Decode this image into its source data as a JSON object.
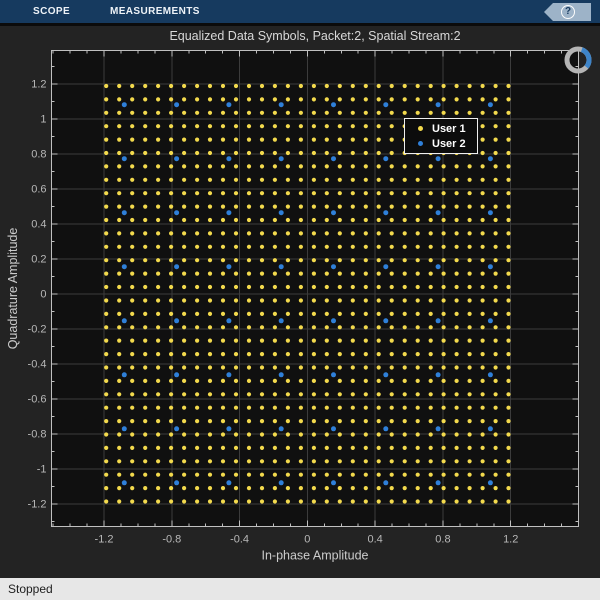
{
  "toolbar": {
    "tabs": [
      {
        "label": "SCOPE"
      },
      {
        "label": "MEASUREMENTS"
      }
    ],
    "help_label": "?",
    "background": "#163a5f"
  },
  "status_bar": {
    "text": "Stopped",
    "background": "#e7e7e7"
  },
  "scope_ui": {
    "progress_ring": {
      "track_color": "#b5b5b5",
      "arc_color": "#3e84c8"
    }
  },
  "chart_data": {
    "type": "scatter",
    "title": "Equalized Data Symbols, Packet:2, Spatial Stream:2",
    "xlabel": "In-phase Amplitude",
    "ylabel": "Quadrature Amplitude",
    "xlim": [
      -1.51,
      1.6
    ],
    "ylim": [
      -1.33,
      1.39
    ],
    "grid": true,
    "minor_tick_step": 0.1,
    "plot_background": "#101010",
    "grid_color": "#3c3c3c",
    "axis_color": "#c0c0c0",
    "tick_label_color": "#b8b8b8",
    "axis_label_color": "#cccccc",
    "x_ticks": {
      "values": [
        -1.2,
        -0.8,
        -0.4,
        0,
        0.4,
        0.8,
        1.2
      ],
      "labels": [
        "-1.2",
        "-0.8",
        "-0.4",
        "0",
        "0.4",
        "0.8",
        "1.2"
      ]
    },
    "y_ticks": {
      "values": [
        -1.2,
        -1,
        -0.8,
        -0.6,
        -0.4,
        -0.2,
        0,
        0.2,
        0.4,
        0.6,
        0.8,
        1,
        1.2
      ],
      "labels": [
        "-1.2",
        "-1",
        "-0.8",
        "-0.6",
        "-0.4",
        "-0.2",
        "0",
        "0.2",
        "0.4",
        "0.6",
        "0.8",
        "1",
        "1.2"
      ]
    },
    "legend": {
      "position": "upper-right-inset",
      "entries": [
        {
          "label": "User 1",
          "color": "#f3da4d"
        },
        {
          "label": "User 2",
          "color": "#2f80d9"
        }
      ]
    },
    "series": [
      {
        "name": "User 1",
        "marker": "dot",
        "color": "#f3da4d",
        "points_structure": "cartesian_product_of_levels",
        "levels": [
          -1.1871,
          -1.1105,
          -1.0339,
          -0.9573,
          -0.8807,
          -0.8041,
          -0.7276,
          -0.651,
          -0.5744,
          -0.4978,
          -0.4212,
          -0.3446,
          -0.268,
          -0.1915,
          -0.1149,
          -0.0383,
          0.0383,
          0.1149,
          0.1915,
          0.268,
          0.3446,
          0.4212,
          0.4978,
          0.5744,
          0.651,
          0.7276,
          0.8041,
          0.8807,
          0.9573,
          1.0339,
          1.1105,
          1.1871
        ]
      },
      {
        "name": "User 2",
        "marker": "dot",
        "color": "#2f80d9",
        "points_structure": "cartesian_product_of_levels",
        "levels": [
          -1.0801,
          -0.7715,
          -0.4629,
          -0.1543,
          0.1543,
          0.4629,
          0.7715,
          1.0801
        ]
      }
    ]
  }
}
